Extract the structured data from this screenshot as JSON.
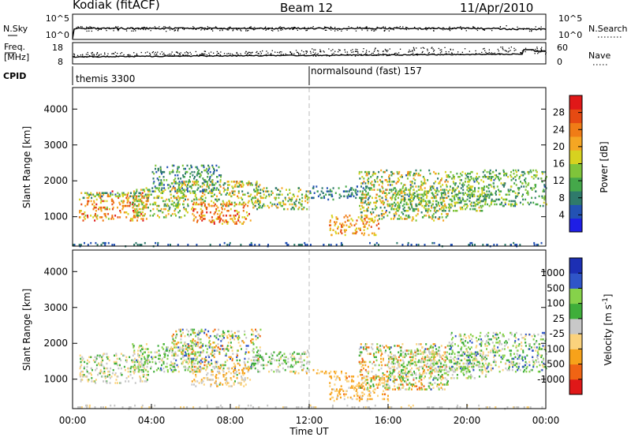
{
  "header": {
    "station": "Kodiak (fitACF)",
    "beam": "Beam 12",
    "date": "11/Apr/2010"
  },
  "noise_panel": {
    "left_label": "N.Sky",
    "right_label": "N.Search",
    "left_ticks": [
      "10^5",
      "10^0"
    ],
    "right_ticks": [
      "10^5",
      "10^0"
    ]
  },
  "freq_panel": {
    "left_label_1": "Freq.",
    "left_label_2": "[MHz]",
    "right_label": "Nave",
    "left_ticks": [
      "18",
      "8"
    ],
    "right_ticks": [
      "60",
      "0"
    ]
  },
  "cpid": {
    "label": "CPID",
    "segments": [
      {
        "text": "themis 3300",
        "start_hour": 0
      },
      {
        "text": "normalsound (fast) 157",
        "start_hour": 12
      }
    ]
  },
  "time_axis": {
    "label": "Time UT",
    "ticks": [
      "00:00",
      "04:00",
      "08:00",
      "12:00",
      "16:00",
      "20:00",
      "00:00"
    ],
    "range_hours": [
      0,
      24
    ]
  },
  "chart_data": [
    {
      "type": "heatmap",
      "name": "power",
      "ylabel": "Slant Range [km]",
      "ylim": [
        180,
        4600
      ],
      "yticks": [
        "1000",
        "2000",
        "3000",
        "4000"
      ],
      "ytick_values": [
        1000,
        2000,
        3000,
        4000
      ],
      "colorbar_label": "Power [dB]",
      "colorbar_ticks": [
        "28",
        "24",
        "20",
        "16",
        "12",
        "8",
        "4"
      ],
      "colorbar_tick_values": [
        28,
        24,
        20,
        16,
        12,
        8,
        4
      ],
      "colorbar_range": [
        0,
        32
      ],
      "colors": [
        "#1e1ee6",
        "#2352b4",
        "#2f7a6b",
        "#45a84a",
        "#7fc43a",
        "#d7d21f",
        "#f5a623",
        "#f07c16",
        "#e64a12",
        "#e01818"
      ],
      "clusters": [
        {
          "t": [
            0.3,
            3.8
          ],
          "r": [
            900,
            1700
          ],
          "v": [
            14,
            30
          ]
        },
        {
          "t": [
            0.5,
            4.0
          ],
          "r": [
            1550,
            1700
          ],
          "v": [
            6,
            20
          ]
        },
        {
          "t": [
            3.0,
            5.8
          ],
          "r": [
            1000,
            1800
          ],
          "v": [
            8,
            22
          ]
        },
        {
          "t": [
            4.0,
            7.5
          ],
          "r": [
            1700,
            2450
          ],
          "v": [
            4,
            16
          ]
        },
        {
          "t": [
            5.0,
            9.5
          ],
          "r": [
            1300,
            2000
          ],
          "v": [
            8,
            24
          ]
        },
        {
          "t": [
            6.0,
            9.0
          ],
          "r": [
            800,
            1400
          ],
          "v": [
            16,
            30
          ]
        },
        {
          "t": [
            9.0,
            12.0
          ],
          "r": [
            1200,
            1800
          ],
          "v": [
            6,
            22
          ]
        },
        {
          "t": [
            12.0,
            15.0
          ],
          "r": [
            1500,
            1850
          ],
          "v": [
            4,
            12
          ]
        },
        {
          "t": [
            13.0,
            15.5
          ],
          "r": [
            500,
            1050
          ],
          "v": [
            16,
            28
          ]
        },
        {
          "t": [
            14.5,
            19.0
          ],
          "r": [
            900,
            2300
          ],
          "v": [
            6,
            24
          ]
        },
        {
          "t": [
            16.0,
            21.0
          ],
          "r": [
            1150,
            1800
          ],
          "v": [
            8,
            20
          ]
        },
        {
          "t": [
            19.0,
            24.0
          ],
          "r": [
            1300,
            2300
          ],
          "v": [
            6,
            18
          ]
        },
        {
          "t": [
            0.0,
            24.0
          ],
          "r": [
            200,
            260
          ],
          "v": [
            4,
            8
          ]
        }
      ]
    },
    {
      "type": "heatmap",
      "name": "velocity",
      "ylabel": "Slant Range [km]",
      "ylim": [
        180,
        4600
      ],
      "yticks": [
        "1000",
        "2000",
        "3000",
        "4000"
      ],
      "ytick_values": [
        1000,
        2000,
        3000,
        4000
      ],
      "colorbar_label": "Velocity [m s^-1]",
      "colorbar_ticks": [
        "1000",
        "500",
        "100",
        "25",
        "-25",
        "-100",
        "-500",
        "-1000"
      ],
      "colorbar_tick_values": [
        1000,
        500,
        100,
        25,
        -25,
        -100,
        -500,
        -1000
      ],
      "colorbar_range": [
        -1200,
        1200
      ],
      "colors": [
        "#e01818",
        "#f06414",
        "#f7a21a",
        "#fbd27c",
        "#c8c8c8",
        "#3fae3a",
        "#86d24a",
        "#2f55c8",
        "#1c2fb4"
      ],
      "clusters": [
        {
          "t": [
            0.3,
            3.8
          ],
          "r": [
            900,
            1700
          ],
          "v": [
            -400,
            300
          ]
        },
        {
          "t": [
            3.0,
            6.5
          ],
          "r": [
            1200,
            2000
          ],
          "v": [
            -300,
            700
          ]
        },
        {
          "t": [
            5.0,
            9.5
          ],
          "r": [
            1300,
            2400
          ],
          "v": [
            -800,
            900
          ]
        },
        {
          "t": [
            6.0,
            9.0
          ],
          "r": [
            800,
            1400
          ],
          "v": [
            -600,
            200
          ]
        },
        {
          "t": [
            9.0,
            12.0
          ],
          "r": [
            1200,
            1800
          ],
          "v": [
            -200,
            500
          ]
        },
        {
          "t": [
            11.0,
            14.0
          ],
          "r": [
            1150,
            1250
          ],
          "v": [
            -600,
            -150
          ]
        },
        {
          "t": [
            13.0,
            16.0
          ],
          "r": [
            400,
            1100
          ],
          "v": [
            -700,
            -80
          ]
        },
        {
          "t": [
            14.5,
            19.0
          ],
          "r": [
            700,
            2000
          ],
          "v": [
            -900,
            700
          ]
        },
        {
          "t": [
            16.0,
            21.0
          ],
          "r": [
            1000,
            1800
          ],
          "v": [
            -400,
            600
          ]
        },
        {
          "t": [
            19.0,
            24.0
          ],
          "r": [
            1200,
            2300
          ],
          "v": [
            -300,
            800
          ]
        },
        {
          "t": [
            0.0,
            24.0
          ],
          "r": [
            200,
            260
          ],
          "v": [
            -200,
            50
          ]
        }
      ]
    }
  ]
}
